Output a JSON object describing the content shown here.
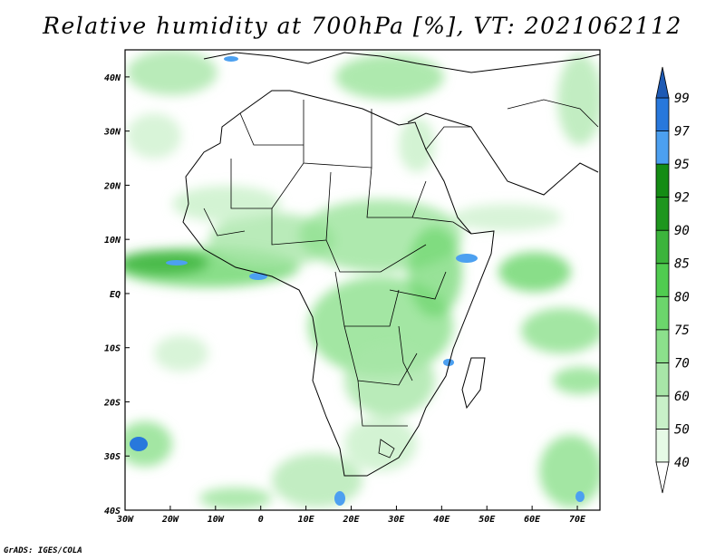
{
  "title": "Relative humidity at 700hPa [%], VT: 2021062112",
  "credit": "GrADS: IGES/COLA",
  "map": {
    "lon_range": [
      -30,
      75
    ],
    "lat_range": [
      -40,
      45
    ],
    "lon_ticks": [
      {
        "value": -30,
        "label": "30W"
      },
      {
        "value": -20,
        "label": "20W"
      },
      {
        "value": -10,
        "label": "10W"
      },
      {
        "value": 0,
        "label": "0"
      },
      {
        "value": 10,
        "label": "10E"
      },
      {
        "value": 20,
        "label": "20E"
      },
      {
        "value": 30,
        "label": "30E"
      },
      {
        "value": 40,
        "label": "40E"
      },
      {
        "value": 50,
        "label": "50E"
      },
      {
        "value": 60,
        "label": "60E"
      },
      {
        "value": 70,
        "label": "70E"
      }
    ],
    "lat_ticks": [
      {
        "value": 40,
        "label": "40N"
      },
      {
        "value": 30,
        "label": "30N"
      },
      {
        "value": 20,
        "label": "20N"
      },
      {
        "value": 10,
        "label": "10N"
      },
      {
        "value": 0,
        "label": "EQ"
      },
      {
        "value": -10,
        "label": "10S"
      },
      {
        "value": -20,
        "label": "20S"
      },
      {
        "value": -30,
        "label": "30S"
      },
      {
        "value": -40,
        "label": "40S"
      }
    ]
  },
  "colorbar": {
    "levels": [
      40,
      50,
      60,
      70,
      75,
      80,
      85,
      90,
      92,
      95,
      97,
      99
    ],
    "labels": [
      "40",
      "50",
      "60",
      "70",
      "75",
      "80",
      "85",
      "90",
      "92",
      "95",
      "97",
      "99"
    ],
    "colors": [
      "#e6fae6",
      "#c8f0c8",
      "#a8e6a8",
      "#8ce08c",
      "#6cd66c",
      "#50cc50",
      "#3cb43c",
      "#1e961e",
      "#148c14",
      "#4ca0f0",
      "#2878dc",
      "#1e5ab4"
    ],
    "below_color": "#ffffff",
    "above_color": "#1e5ab4"
  }
}
